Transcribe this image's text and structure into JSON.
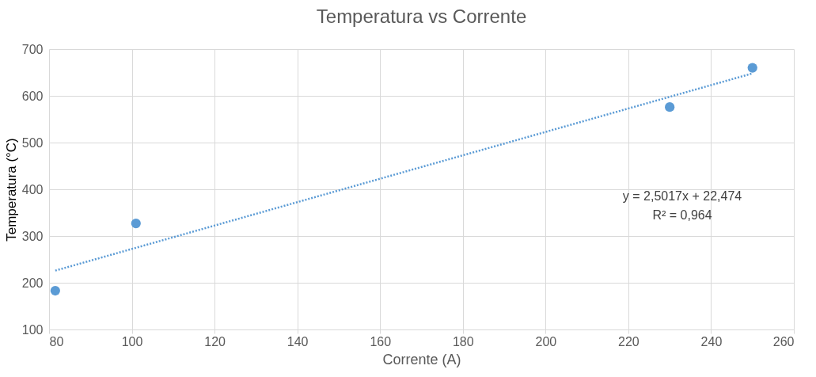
{
  "chart_data": {
    "type": "scatter",
    "title": "Temperatura vs Corrente",
    "xlabel": "Corrente (A)",
    "ylabel": "Temperatura (°C)",
    "series": [
      {
        "color": "#5b9bd5",
        "x": [
          81.5,
          101,
          230,
          250
        ],
        "values": [
          183,
          327,
          576,
          660
        ],
        "marker": "circle"
      },
      {
        "type": "line",
        "color": "#5b9bd5",
        "x": [
          81.5,
          250
        ],
        "values": [
          226,
          648
        ],
        "line_style": "dotted"
      }
    ],
    "annotations": [
      "y = 2,5017x + 22,474",
      "R² = 0,964"
    ],
    "xlim": [
      80,
      260
    ],
    "xticks": [
      80,
      100,
      120,
      140,
      160,
      180,
      200,
      220,
      240,
      260
    ],
    "ylim": [
      100,
      700
    ],
    "yticks": [
      100,
      200,
      300,
      400,
      500,
      600,
      700
    ],
    "grid": true
  }
}
